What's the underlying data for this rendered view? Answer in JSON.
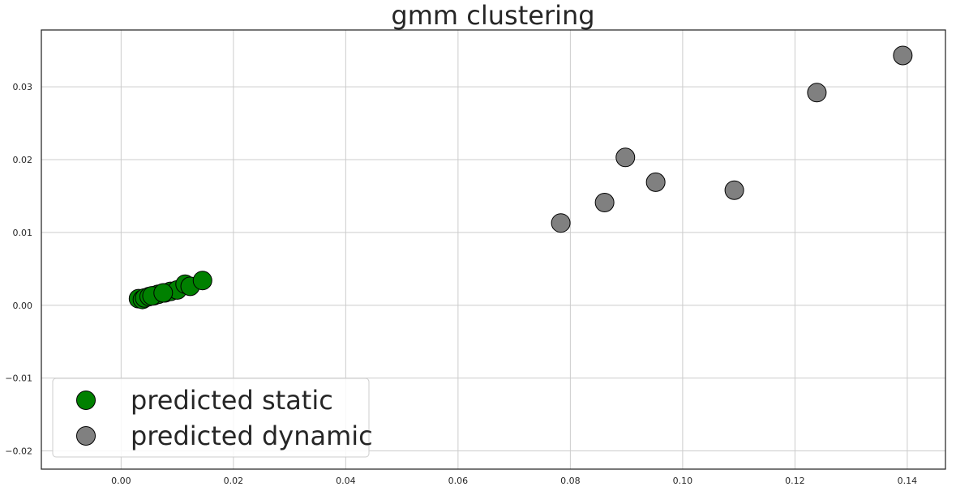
{
  "chart_data": {
    "type": "scatter",
    "title": "gmm clustering",
    "xlabel": "",
    "ylabel": "",
    "xlim": [
      -0.0142,
      0.1468
    ],
    "ylim": [
      -0.0225,
      0.0378
    ],
    "x_ticks": [
      0.0,
      0.02,
      0.04,
      0.06,
      0.08,
      0.1,
      0.12,
      0.14
    ],
    "x_tick_labels": [
      "0.00",
      "0.02",
      "0.04",
      "0.06",
      "0.08",
      "0.10",
      "0.12",
      "0.14"
    ],
    "y_ticks": [
      -0.02,
      -0.01,
      0.0,
      0.01,
      0.02,
      0.03
    ],
    "y_tick_labels": [
      "−0.02",
      "−0.01",
      "0.00",
      "0.01",
      "0.02",
      "0.03"
    ],
    "grid": true,
    "legend_position": "lower-left",
    "series": [
      {
        "name": "predicted static",
        "color": "#008000",
        "points": [
          {
            "x": 0.0031,
            "y": 0.0009
          },
          {
            "x": 0.0038,
            "y": 0.0008
          },
          {
            "x": 0.0042,
            "y": 0.001
          },
          {
            "x": 0.005,
            "y": 0.0012
          },
          {
            "x": 0.0058,
            "y": 0.0013
          },
          {
            "x": 0.0066,
            "y": 0.0015
          },
          {
            "x": 0.0078,
            "y": 0.0017
          },
          {
            "x": 0.0088,
            "y": 0.0019
          },
          {
            "x": 0.01,
            "y": 0.0021
          },
          {
            "x": 0.0114,
            "y": 0.0029
          },
          {
            "x": 0.0123,
            "y": 0.0026
          },
          {
            "x": 0.0145,
            "y": 0.0034
          },
          {
            "x": 0.0055,
            "y": 0.0013
          },
          {
            "x": 0.0075,
            "y": 0.0017
          }
        ]
      },
      {
        "name": "predicted dynamic",
        "color": "#808080",
        "points": [
          {
            "x": 0.0783,
            "y": 0.0113
          },
          {
            "x": 0.0861,
            "y": 0.0141
          },
          {
            "x": 0.0898,
            "y": 0.0203
          },
          {
            "x": 0.0952,
            "y": 0.0169
          },
          {
            "x": 0.1092,
            "y": 0.0158
          },
          {
            "x": 0.1239,
            "y": 0.0292
          },
          {
            "x": 0.1392,
            "y": 0.0343
          }
        ]
      }
    ]
  }
}
